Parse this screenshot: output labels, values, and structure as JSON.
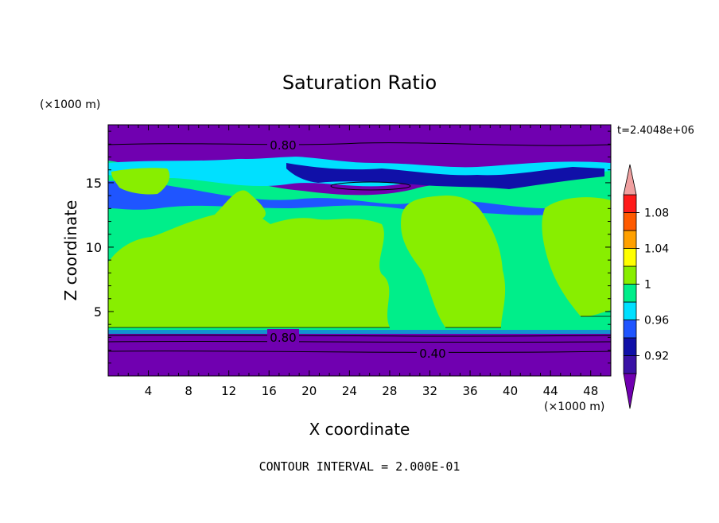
{
  "chart_data": {
    "type": "heatmap",
    "title": "Saturation Ratio",
    "time_label": "t=2.4048e+06",
    "xlabel": "X coordinate",
    "ylabel": "Z coordinate",
    "x_unit": "(×1000 m)",
    "y_unit": "(×1000 m)",
    "xlim": [
      0,
      50
    ],
    "ylim": [
      0,
      19.5
    ],
    "x_ticks": [
      "4",
      "8",
      "12",
      "16",
      "20",
      "24",
      "28",
      "32",
      "36",
      "40",
      "44",
      "48"
    ],
    "y_ticks": [
      "5",
      "10",
      "15"
    ],
    "contour_interval_text": "CONTOUR INTERVAL = 2.000E-01",
    "contour_labels": [
      {
        "text": "0.80",
        "x": 17.5,
        "z": 18.1
      },
      {
        "text": "0.80",
        "x": 17.5,
        "z": 2.95
      },
      {
        "text": "0.40",
        "x": 33.0,
        "z": 1.75
      }
    ],
    "colorbar": {
      "levels": [
        0.9,
        0.92,
        0.94,
        0.96,
        0.98,
        1.0,
        1.02,
        1.04,
        1.06,
        1.08,
        1.1
      ],
      "tick_labels": [
        "0.92",
        "0.96",
        "1",
        "1.04",
        "1.08"
      ],
      "colors": [
        "#3a12a6",
        "#1010a8",
        "#1f55ff",
        "#00e0ff",
        "#00ee8a",
        "#88ee00",
        "#ffff00",
        "#ffa000",
        "#ff5a00",
        "#ff1a1a"
      ],
      "under_color": "#7000b0",
      "over_color": "#f0a0a0"
    },
    "regions": [
      {
        "level": "<0.90",
        "color": "#7000b0",
        "z_range": [
          0,
          3.4
        ]
      },
      {
        "level": "0.98-1.00",
        "color": "#00ee8a",
        "z_range": [
          3.4,
          17
        ]
      },
      {
        "level": "1.00-1.02",
        "color": "#88ee00",
        "z_range": [
          3.4,
          15.5
        ]
      },
      {
        "level": "<0.90",
        "color": "#7000b0",
        "z_range": [
          17,
          19.5
        ]
      }
    ]
  }
}
